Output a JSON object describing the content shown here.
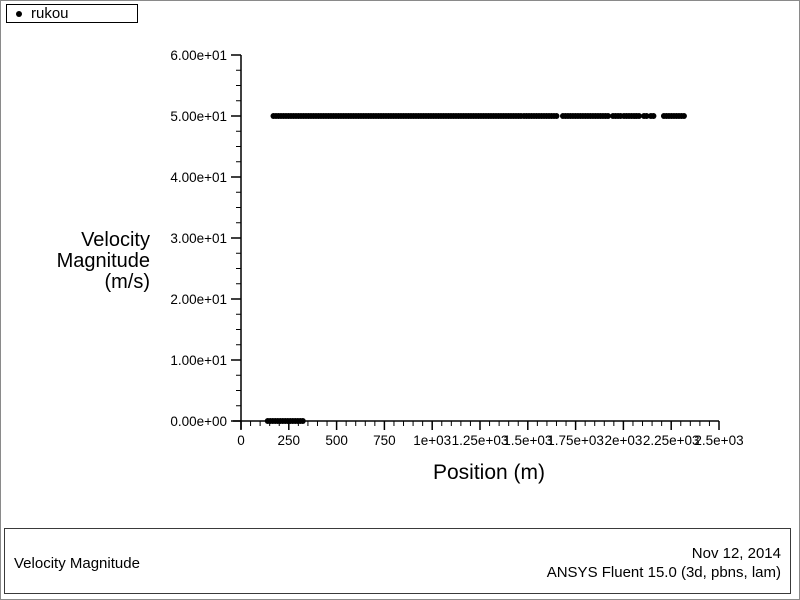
{
  "legend": {
    "series_label": "rukou",
    "marker": "filled-circle",
    "position": "top-left"
  },
  "axes": {
    "y": {
      "title_lines": [
        "Velocity",
        "Magnitude",
        "(m/s)"
      ],
      "tick_labels": [
        "0.00e+00",
        "1.00e+01",
        "2.00e+01",
        "3.00e+01",
        "4.00e+01",
        "5.00e+01",
        "6.00e+01"
      ],
      "tick_values": [
        0,
        10,
        20,
        30,
        40,
        50,
        60
      ]
    },
    "x": {
      "title": "Position (m)",
      "tick_labels": [
        "0",
        "250",
        "500",
        "750",
        "1e+03",
        "1.25e+03",
        "1.5e+03",
        "1.75e+03",
        "2e+03",
        "2.25e+03",
        "2.5e+03"
      ],
      "tick_values": [
        0,
        250,
        500,
        750,
        1000,
        1250,
        1500,
        1750,
        2000,
        2250,
        2500
      ]
    }
  },
  "footer": {
    "left_title": "Velocity Magnitude",
    "date": "Nov 12, 2014",
    "app": "ANSYS Fluent 15.0 (3d, pbns, lam)"
  },
  "chart_data": {
    "type": "scatter",
    "title": "Velocity Magnitude",
    "xlabel": "Position (m)",
    "ylabel": "Velocity Magnitude (m/s)",
    "xlim": [
      0,
      2500
    ],
    "ylim": [
      0,
      60
    ],
    "x_ticks": [
      0,
      250,
      500,
      750,
      1000,
      1250,
      1500,
      1750,
      2000,
      2250,
      2500
    ],
    "y_ticks": [
      0,
      10,
      20,
      30,
      40,
      50,
      60
    ],
    "x_minor_step": 50,
    "y_minor_step": 2.5,
    "grid": false,
    "legend_position": "top-left",
    "marker_color": "#000000",
    "series": [
      {
        "name": "rukou",
        "marker": "filled-circle",
        "color": "#000000",
        "bands": [
          {
            "y": 50,
            "x_ranges": [
              [
                170,
                1465
              ],
              [
                1480,
                1663
              ],
              [
                1684,
                1831
              ],
              [
                1841,
                1925
              ],
              [
                1946,
                1987
              ],
              [
                2003,
                2092
              ],
              [
                2108,
                2129
              ],
              [
                2144,
                2170
              ],
              [
                2212,
                2327
              ]
            ]
          },
          {
            "y": 0,
            "x_ranges": [
              [
                140,
                325
              ]
            ]
          }
        ]
      }
    ]
  }
}
